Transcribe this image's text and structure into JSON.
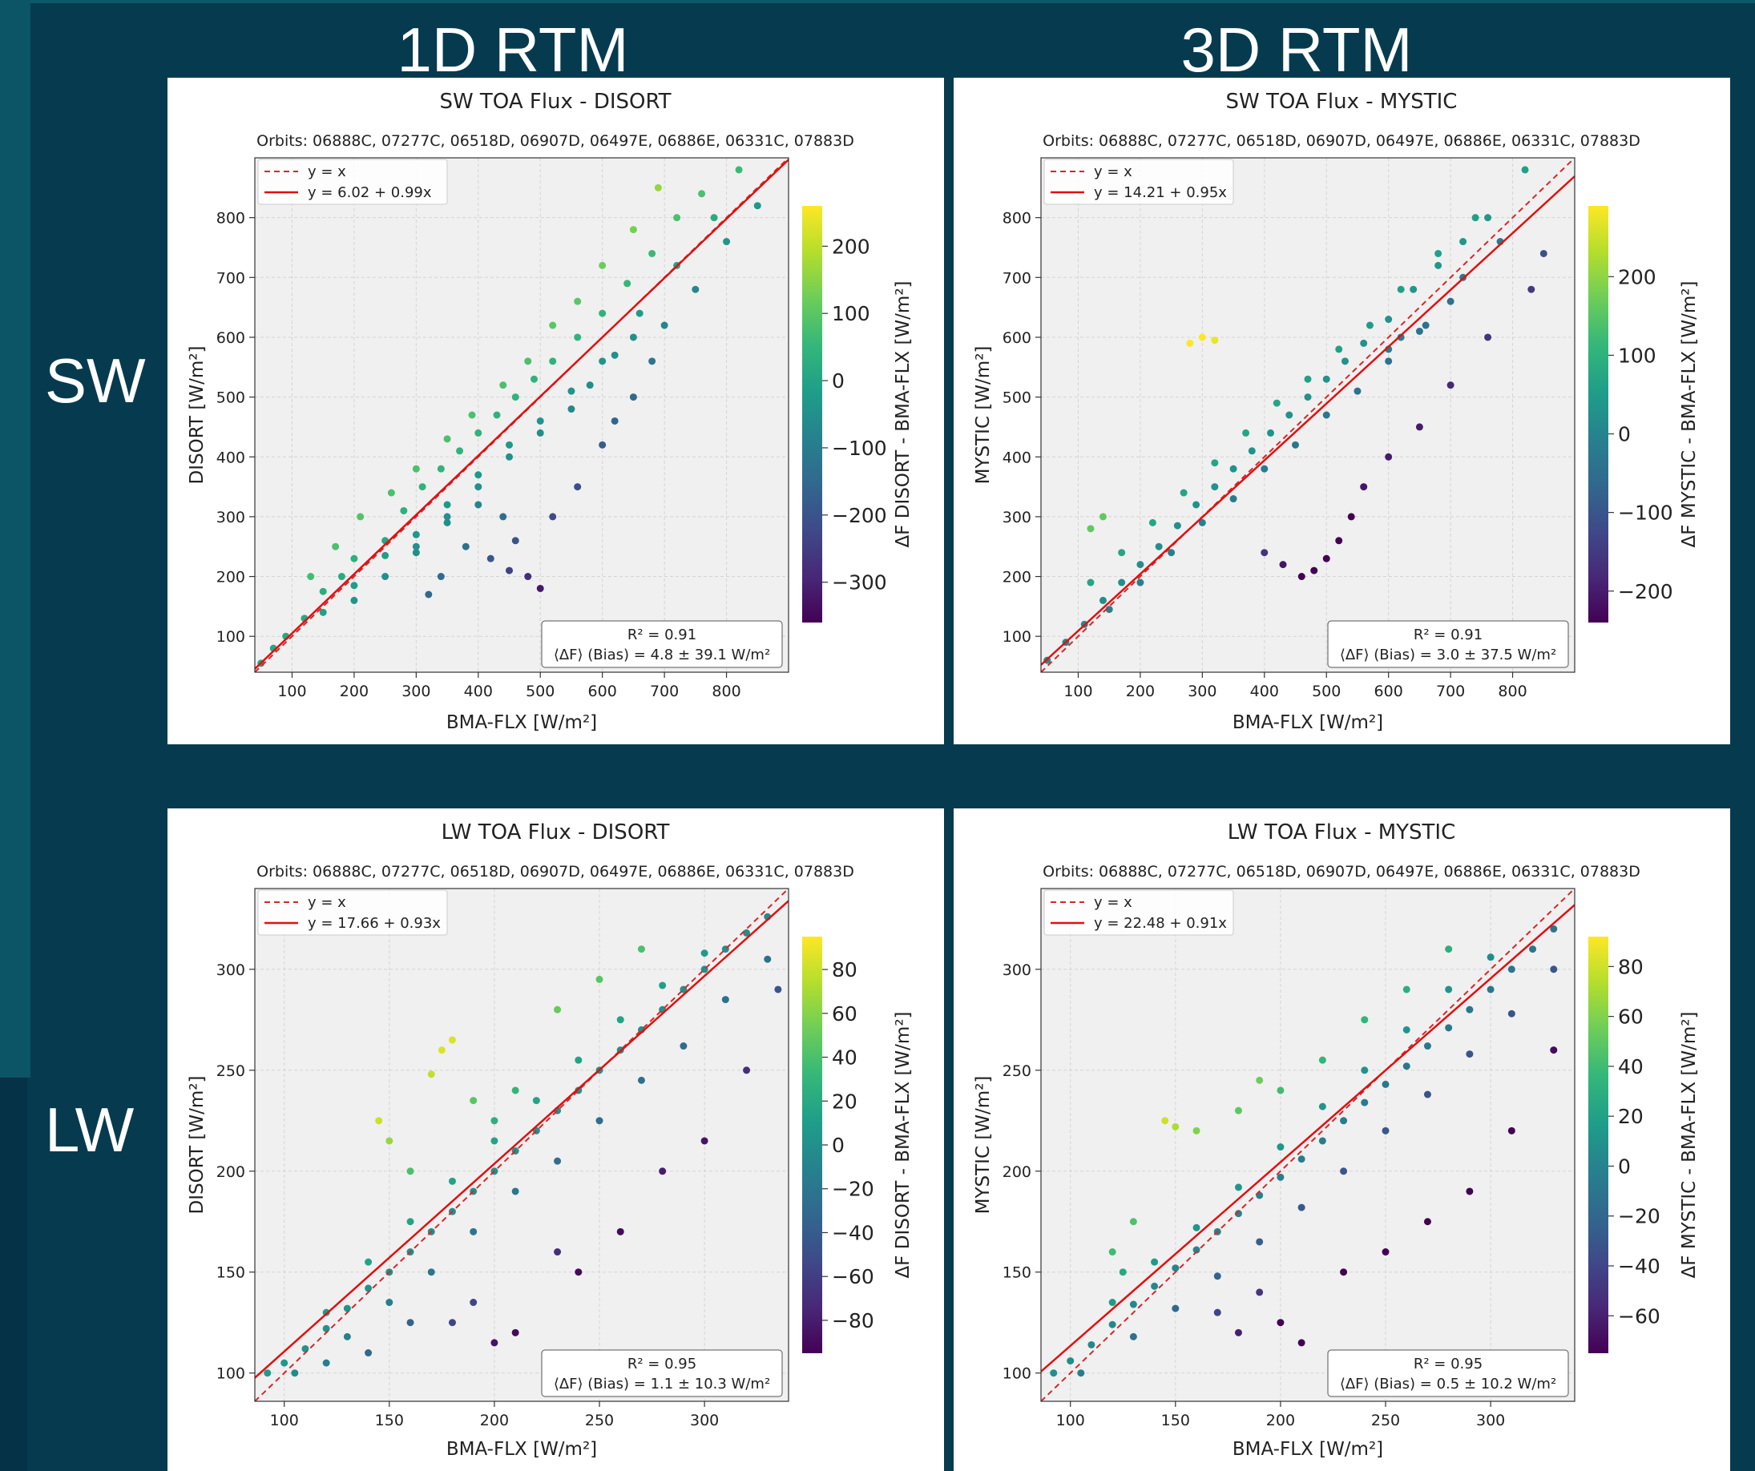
{
  "column_headers": [
    "1D RTM",
    "3D RTM"
  ],
  "row_headers": [
    "SW",
    "LW"
  ],
  "chart_data": [
    {
      "type": "scatter",
      "title": "SW TOA Flux - DISORT",
      "subtitle": "Orbits: 06888C, 07277C, 06518D, 06907D, 06497E, 06886E, 06331C, 07883D",
      "xlabel": "BMA-FLX [W/m²]",
      "ylabel": "DISORT [W/m²]",
      "colorbar_label": "ΔF DISORT - BMA-FLX [W/m²]",
      "xlim": [
        40,
        900
      ],
      "ylim": [
        40,
        900
      ],
      "xticks": [
        100,
        200,
        300,
        400,
        500,
        600,
        700,
        800
      ],
      "yticks": [
        100,
        200,
        300,
        400,
        500,
        600,
        700,
        800
      ],
      "clim": [
        -360,
        260
      ],
      "cticks": [
        200,
        100,
        0,
        -100,
        -200,
        -300
      ],
      "legend": [
        "y = x",
        "y = 6.02 + 0.99x"
      ],
      "fit": {
        "intercept": 6.02,
        "slope": 0.99
      },
      "stats": {
        "r2_label": "R² = 0.91",
        "bias_label": "⟨ΔF⟩ (Bias) = 4.8 ± 39.1 W/m²"
      },
      "grid": true,
      "legend_position": "upper-left",
      "colormap": "viridis",
      "points": [
        [
          50,
          55
        ],
        [
          70,
          80
        ],
        [
          90,
          100
        ],
        [
          120,
          130
        ],
        [
          150,
          175
        ],
        [
          180,
          200
        ],
        [
          200,
          230
        ],
        [
          250,
          260
        ],
        [
          280,
          310
        ],
        [
          310,
          350
        ],
        [
          340,
          380
        ],
        [
          370,
          410
        ],
        [
          400,
          440
        ],
        [
          430,
          470
        ],
        [
          460,
          500
        ],
        [
          490,
          530
        ],
        [
          520,
          560
        ],
        [
          560,
          600
        ],
        [
          600,
          640
        ],
        [
          640,
          690
        ],
        [
          680,
          740
        ],
        [
          720,
          800
        ],
        [
          760,
          840
        ],
        [
          820,
          880
        ],
        [
          150,
          140
        ],
        [
          200,
          185
        ],
        [
          250,
          235
        ],
        [
          300,
          270
        ],
        [
          350,
          320
        ],
        [
          400,
          370
        ],
        [
          450,
          420
        ],
        [
          500,
          460
        ],
        [
          550,
          510
        ],
        [
          600,
          560
        ],
        [
          650,
          600
        ],
        [
          130,
          200
        ],
        [
          170,
          250
        ],
        [
          210,
          300
        ],
        [
          260,
          340
        ],
        [
          300,
          380
        ],
        [
          350,
          430
        ],
        [
          390,
          470
        ],
        [
          440,
          520
        ],
        [
          480,
          560
        ],
        [
          520,
          620
        ],
        [
          560,
          660
        ],
        [
          600,
          720
        ],
        [
          650,
          780
        ],
        [
          690,
          850
        ],
        [
          300,
          240
        ],
        [
          350,
          290
        ],
        [
          400,
          320
        ],
        [
          420,
          230
        ],
        [
          450,
          210
        ],
        [
          480,
          200
        ],
        [
          500,
          180
        ],
        [
          460,
          260
        ],
        [
          520,
          300
        ],
        [
          560,
          350
        ],
        [
          600,
          420
        ],
        [
          620,
          460
        ],
        [
          650,
          500
        ],
        [
          680,
          560
        ],
        [
          700,
          620
        ],
        [
          750,
          680
        ],
        [
          800,
          760
        ],
        [
          850,
          820
        ],
        [
          440,
          300
        ],
        [
          380,
          250
        ],
        [
          340,
          200
        ],
        [
          320,
          170
        ],
        [
          580,
          520
        ],
        [
          620,
          570
        ],
        [
          660,
          640
        ],
        [
          720,
          720
        ],
        [
          780,
          800
        ],
        [
          200,
          160
        ],
        [
          250,
          200
        ],
        [
          300,
          250
        ],
        [
          350,
          300
        ],
        [
          400,
          350
        ],
        [
          450,
          400
        ],
        [
          500,
          440
        ],
        [
          550,
          480
        ]
      ]
    },
    {
      "type": "scatter",
      "title": "SW TOA Flux - MYSTIC",
      "subtitle": "Orbits: 06888C, 07277C, 06518D, 06907D, 06497E, 06886E, 06331C, 07883D",
      "xlabel": "BMA-FLX [W/m²]",
      "ylabel": "MYSTIC [W/m²]",
      "colorbar_label": "ΔF MYSTIC - BMA-FLX [W/m²]",
      "xlim": [
        40,
        900
      ],
      "ylim": [
        40,
        900
      ],
      "xticks": [
        100,
        200,
        300,
        400,
        500,
        600,
        700,
        800
      ],
      "yticks": [
        100,
        200,
        300,
        400,
        500,
        600,
        700,
        800
      ],
      "clim": [
        -240,
        290
      ],
      "cticks": [
        200,
        100,
        0,
        -100,
        -200
      ],
      "legend": [
        "y = x",
        "y = 14.21 + 0.95x"
      ],
      "fit": {
        "intercept": 14.21,
        "slope": 0.95
      },
      "stats": {
        "r2_label": "R² = 0.91",
        "bias_label": "⟨ΔF⟩ (Bias) = 3.0 ± 37.5 W/m²"
      },
      "grid": true,
      "legend_position": "upper-left",
      "colormap": "viridis",
      "points": [
        [
          50,
          60
        ],
        [
          80,
          90
        ],
        [
          110,
          120
        ],
        [
          140,
          160
        ],
        [
          170,
          190
        ],
        [
          200,
          220
        ],
        [
          230,
          250
        ],
        [
          260,
          285
        ],
        [
          290,
          320
        ],
        [
          320,
          350
        ],
        [
          350,
          380
        ],
        [
          380,
          410
        ],
        [
          410,
          440
        ],
        [
          440,
          470
        ],
        [
          470,
          500
        ],
        [
          500,
          530
        ],
        [
          530,
          560
        ],
        [
          560,
          590
        ],
        [
          600,
          630
        ],
        [
          640,
          680
        ],
        [
          680,
          720
        ],
        [
          720,
          760
        ],
        [
          760,
          800
        ],
        [
          820,
          880
        ],
        [
          150,
          145
        ],
        [
          200,
          190
        ],
        [
          250,
          240
        ],
        [
          300,
          290
        ],
        [
          350,
          330
        ],
        [
          400,
          380
        ],
        [
          450,
          420
        ],
        [
          500,
          470
        ],
        [
          550,
          510
        ],
        [
          600,
          560
        ],
        [
          650,
          610
        ],
        [
          120,
          190
        ],
        [
          170,
          240
        ],
        [
          220,
          290
        ],
        [
          270,
          340
        ],
        [
          320,
          390
        ],
        [
          370,
          440
        ],
        [
          420,
          490
        ],
        [
          470,
          530
        ],
        [
          520,
          580
        ],
        [
          570,
          620
        ],
        [
          620,
          680
        ],
        [
          680,
          740
        ],
        [
          740,
          800
        ],
        [
          400,
          240
        ],
        [
          430,
          220
        ],
        [
          460,
          200
        ],
        [
          480,
          210
        ],
        [
          500,
          230
        ],
        [
          520,
          260
        ],
        [
          540,
          300
        ],
        [
          560,
          350
        ],
        [
          600,
          400
        ],
        [
          650,
          450
        ],
        [
          700,
          520
        ],
        [
          760,
          600
        ],
        [
          830,
          680
        ],
        [
          850,
          740
        ],
        [
          280,
          590
        ],
        [
          300,
          600
        ],
        [
          320,
          595
        ],
        [
          120,
          280
        ],
        [
          140,
          300
        ],
        [
          600,
          580
        ],
        [
          620,
          600
        ],
        [
          660,
          620
        ],
        [
          700,
          660
        ],
        [
          720,
          700
        ],
        [
          780,
          760
        ]
      ]
    },
    {
      "type": "scatter",
      "title": "LW TOA Flux - DISORT",
      "subtitle": "Orbits: 06888C, 07277C, 06518D, 06907D, 06497E, 06886E, 06331C, 07883D",
      "xlabel": "BMA-FLX [W/m²]",
      "ylabel": "DISORT [W/m²]",
      "colorbar_label": "ΔF DISORT - BMA-FLX [W/m²]",
      "xlim": [
        86,
        340
      ],
      "ylim": [
        86,
        340
      ],
      "xticks": [
        100,
        150,
        200,
        250,
        300
      ],
      "yticks": [
        100,
        150,
        200,
        250,
        300
      ],
      "clim": [
        -95,
        95
      ],
      "cticks": [
        80,
        60,
        40,
        20,
        0,
        -20,
        -40,
        -60,
        -80
      ],
      "legend": [
        "y = x",
        "y = 17.66 + 0.93x"
      ],
      "fit": {
        "intercept": 17.66,
        "slope": 0.93
      },
      "stats": {
        "r2_label": "R² = 0.95",
        "bias_label": "⟨ΔF⟩ (Bias) = 1.1 ± 10.3 W/m²"
      },
      "grid": true,
      "legend_position": "upper-left",
      "colormap": "viridis",
      "points": [
        [
          92,
          100
        ],
        [
          100,
          105
        ],
        [
          110,
          112
        ],
        [
          120,
          122
        ],
        [
          130,
          132
        ],
        [
          140,
          142
        ],
        [
          150,
          150
        ],
        [
          160,
          160
        ],
        [
          170,
          170
        ],
        [
          180,
          180
        ],
        [
          190,
          190
        ],
        [
          200,
          200
        ],
        [
          210,
          210
        ],
        [
          220,
          220
        ],
        [
          230,
          230
        ],
        [
          240,
          240
        ],
        [
          250,
          250
        ],
        [
          260,
          260
        ],
        [
          270,
          270
        ],
        [
          280,
          280
        ],
        [
          290,
          290
        ],
        [
          300,
          300
        ],
        [
          310,
          310
        ],
        [
          320,
          318
        ],
        [
          330,
          326
        ],
        [
          120,
          130
        ],
        [
          140,
          155
        ],
        [
          160,
          175
        ],
        [
          180,
          195
        ],
        [
          200,
          215
        ],
        [
          220,
          235
        ],
        [
          240,
          255
        ],
        [
          260,
          275
        ],
        [
          280,
          292
        ],
        [
          300,
          308
        ],
        [
          130,
          118
        ],
        [
          150,
          135
        ],
        [
          170,
          150
        ],
        [
          190,
          170
        ],
        [
          210,
          190
        ],
        [
          230,
          205
        ],
        [
          250,
          225
        ],
        [
          270,
          245
        ],
        [
          290,
          262
        ],
        [
          310,
          285
        ],
        [
          330,
          305
        ],
        [
          145,
          225
        ],
        [
          150,
          215
        ],
        [
          160,
          200
        ],
        [
          170,
          248
        ],
        [
          175,
          260
        ],
        [
          180,
          265
        ],
        [
          190,
          235
        ],
        [
          200,
          225
        ],
        [
          210,
          240
        ],
        [
          230,
          280
        ],
        [
          250,
          295
        ],
        [
          270,
          310
        ],
        [
          180,
          125
        ],
        [
          190,
          135
        ],
        [
          200,
          115
        ],
        [
          210,
          120
        ],
        [
          230,
          160
        ],
        [
          240,
          150
        ],
        [
          260,
          170
        ],
        [
          280,
          200
        ],
        [
          300,
          215
        ],
        [
          320,
          250
        ],
        [
          335,
          290
        ],
        [
          140,
          110
        ],
        [
          160,
          125
        ],
        [
          120,
          105
        ],
        [
          105,
          100
        ]
      ]
    },
    {
      "type": "scatter",
      "title": "LW TOA Flux - MYSTIC",
      "subtitle": "Orbits: 06888C, 07277C, 06518D, 06907D, 06497E, 06886E, 06331C, 07883D",
      "xlabel": "BMA-FLX [W/m²]",
      "ylabel": "MYSTIC [W/m²]",
      "colorbar_label": "ΔF MYSTIC - BMA-FLX [W/m²]",
      "xlim": [
        86,
        340
      ],
      "ylim": [
        86,
        340
      ],
      "xticks": [
        100,
        150,
        200,
        250,
        300
      ],
      "yticks": [
        100,
        150,
        200,
        250,
        300
      ],
      "clim": [
        -75,
        92
      ],
      "cticks": [
        80,
        60,
        40,
        20,
        0,
        -20,
        -40,
        -60
      ],
      "legend": [
        "y = x",
        "y = 22.48 + 0.91x"
      ],
      "fit": {
        "intercept": 22.48,
        "slope": 0.91
      },
      "stats": {
        "r2_label": "R² = 0.95",
        "bias_label": "⟨ΔF⟩ (Bias) = 0.5 ± 10.2 W/m²"
      },
      "grid": true,
      "legend_position": "upper-left",
      "colormap": "viridis",
      "points": [
        [
          92,
          100
        ],
        [
          100,
          106
        ],
        [
          110,
          114
        ],
        [
          120,
          124
        ],
        [
          130,
          134
        ],
        [
          140,
          143
        ],
        [
          150,
          152
        ],
        [
          160,
          161
        ],
        [
          170,
          170
        ],
        [
          180,
          179
        ],
        [
          190,
          188
        ],
        [
          200,
          197
        ],
        [
          210,
          206
        ],
        [
          220,
          215
        ],
        [
          230,
          225
        ],
        [
          240,
          234
        ],
        [
          250,
          243
        ],
        [
          260,
          252
        ],
        [
          270,
          262
        ],
        [
          280,
          271
        ],
        [
          290,
          280
        ],
        [
          300,
          290
        ],
        [
          310,
          300
        ],
        [
          320,
          310
        ],
        [
          330,
          320
        ],
        [
          120,
          135
        ],
        [
          140,
          155
        ],
        [
          160,
          172
        ],
        [
          180,
          192
        ],
        [
          200,
          212
        ],
        [
          220,
          232
        ],
        [
          240,
          250
        ],
        [
          260,
          270
        ],
        [
          280,
          290
        ],
        [
          300,
          306
        ],
        [
          130,
          118
        ],
        [
          150,
          132
        ],
        [
          170,
          148
        ],
        [
          190,
          165
        ],
        [
          210,
          182
        ],
        [
          230,
          200
        ],
        [
          250,
          220
        ],
        [
          270,
          238
        ],
        [
          290,
          258
        ],
        [
          310,
          278
        ],
        [
          330,
          300
        ],
        [
          145,
          225
        ],
        [
          150,
          222
        ],
        [
          160,
          220
        ],
        [
          180,
          230
        ],
        [
          190,
          245
        ],
        [
          200,
          240
        ],
        [
          220,
          255
        ],
        [
          240,
          275
        ],
        [
          260,
          290
        ],
        [
          280,
          310
        ],
        [
          170,
          130
        ],
        [
          180,
          120
        ],
        [
          190,
          140
        ],
        [
          200,
          125
        ],
        [
          210,
          115
        ],
        [
          230,
          150
        ],
        [
          250,
          160
        ],
        [
          270,
          175
        ],
        [
          290,
          190
        ],
        [
          310,
          220
        ],
        [
          330,
          260
        ],
        [
          120,
          160
        ],
        [
          125,
          150
        ],
        [
          130,
          175
        ],
        [
          105,
          100
        ]
      ]
    }
  ]
}
